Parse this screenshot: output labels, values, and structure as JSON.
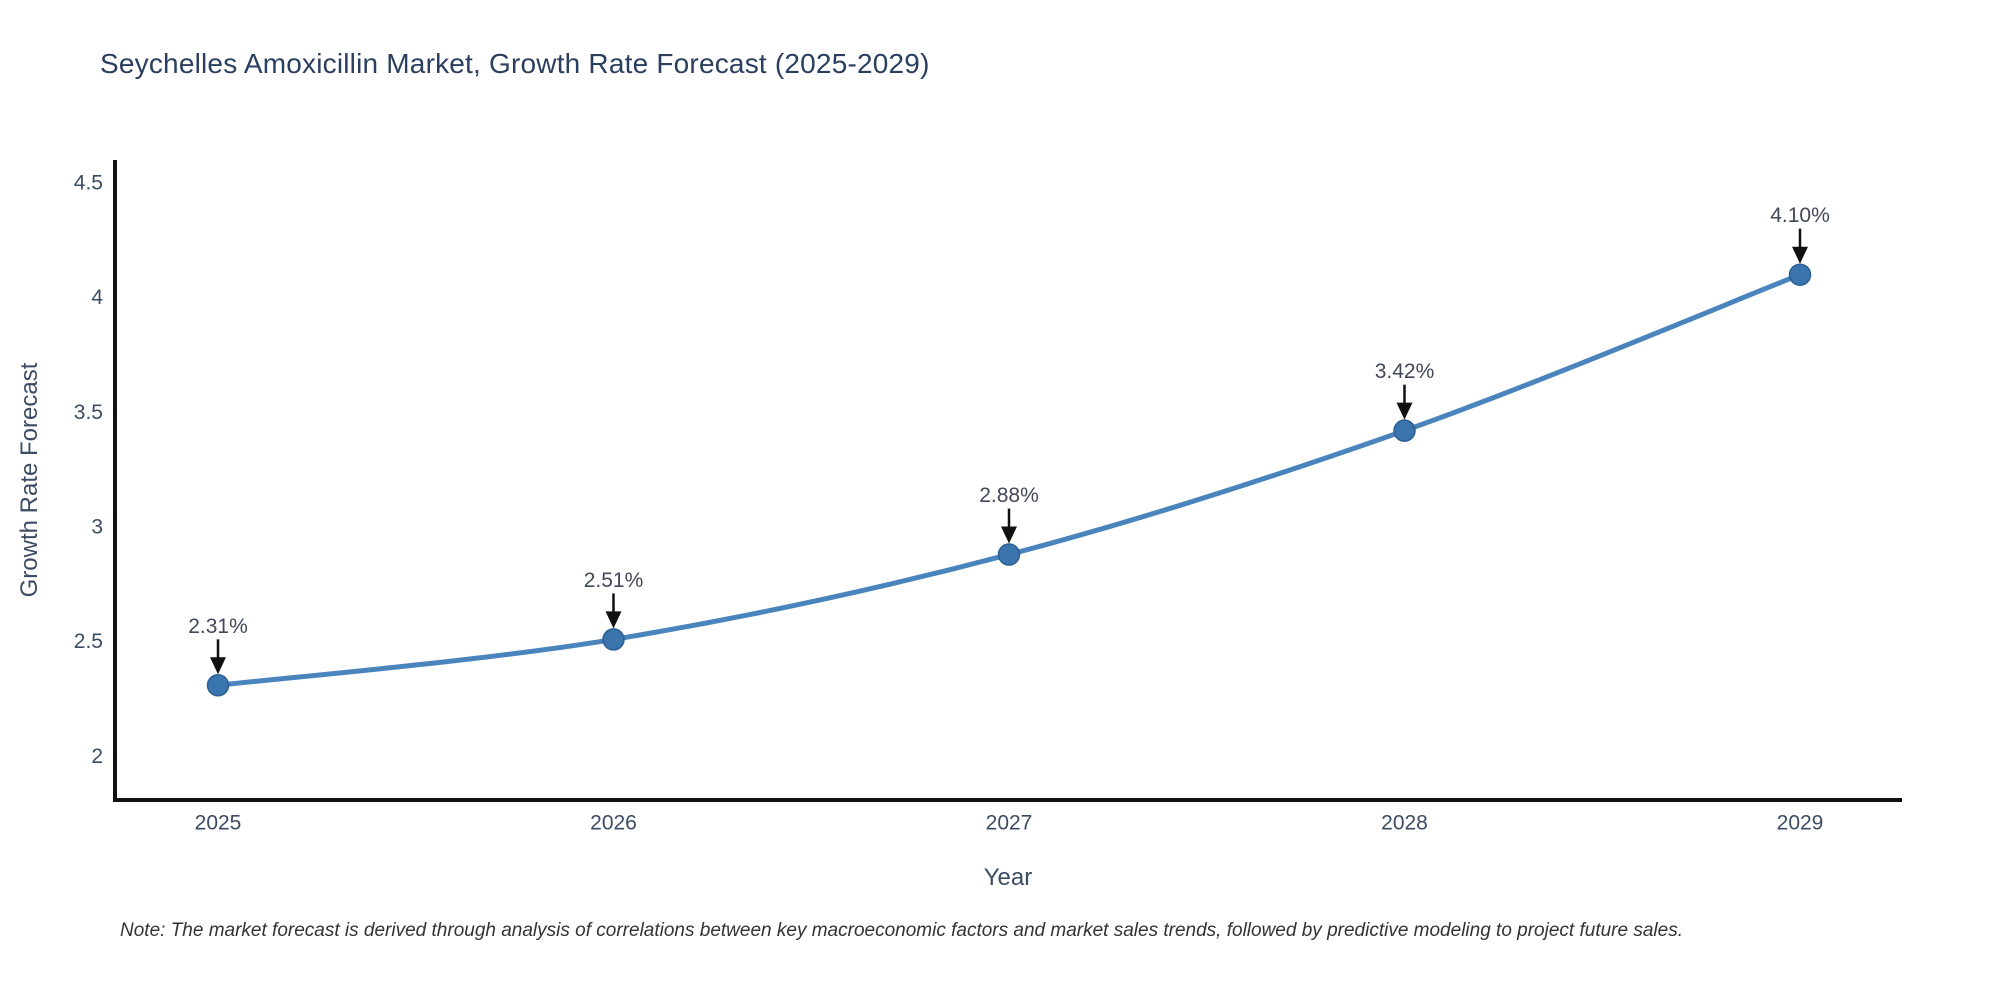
{
  "title": "Seychelles Amoxicillin Market, Growth Rate Forecast (2025-2029)",
  "note": "Note: The market forecast is derived through analysis of correlations between key macroeconomic factors and market sales trends, followed by predictive modeling to project future sales.",
  "chart_data": {
    "type": "line",
    "title": "Seychelles Amoxicillin Market, Growth Rate Forecast (2025-2029)",
    "xlabel": "Year",
    "ylabel": "Growth Rate Forecast",
    "categories": [
      "2025",
      "2026",
      "2027",
      "2028",
      "2029"
    ],
    "values": [
      2.31,
      2.51,
      2.88,
      3.42,
      4.1
    ],
    "point_labels": [
      "2.31%",
      "2.51%",
      "2.88%",
      "3.42%",
      "4.10%"
    ],
    "y_ticks": [
      2,
      2.5,
      3,
      3.5,
      4,
      4.5
    ],
    "ylim": [
      1.81,
      4.6
    ],
    "line_shape": "spline",
    "grid": false,
    "legend": "none",
    "annotation_style": "label-with-down-arrow",
    "colors": {
      "line": "#4a84bd",
      "marker": "#3a74ad",
      "marker_edge": "#2b5f93",
      "axis": "#111111",
      "arrow": "#111111",
      "title_text": "#2a3f5f",
      "tick_text": "#3c4c63",
      "annotation_text": "#42485a",
      "note_text": "#333333",
      "background": "#ffffff"
    }
  }
}
